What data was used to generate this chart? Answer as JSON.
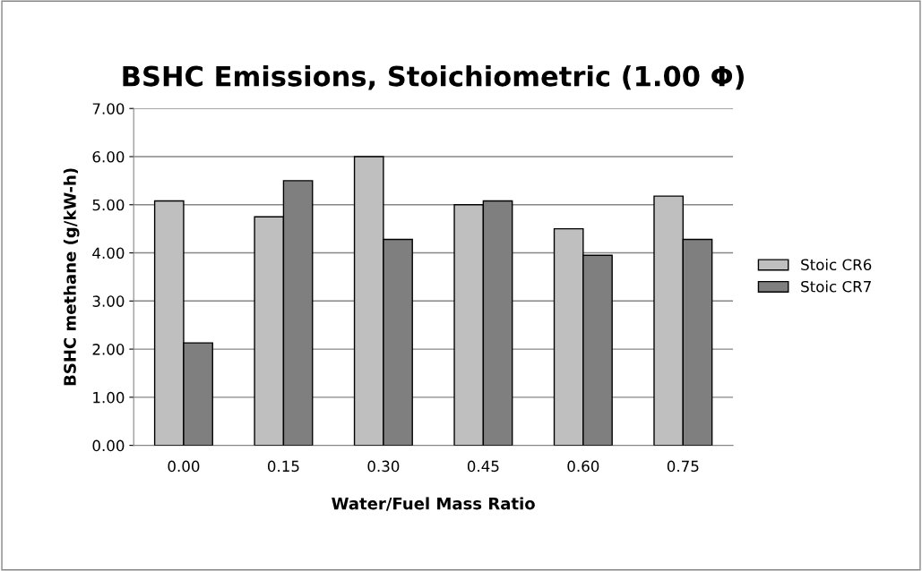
{
  "chart_data": {
    "type": "bar",
    "title": "BSHC Emissions, Stoichiometric (1.00 Φ)",
    "xlabel": "Water/Fuel Mass Ratio",
    "ylabel": "BSHC methane (g/kW-h)",
    "categories": [
      "0.00",
      "0.15",
      "0.30",
      "0.45",
      "0.60",
      "0.75"
    ],
    "series": [
      {
        "name": "Stoic CR6",
        "color": "#bfbfbf",
        "values": [
          5.08,
          4.75,
          6.0,
          5.0,
          4.5,
          5.18
        ]
      },
      {
        "name": "Stoic CR7",
        "color": "#7f7f7f",
        "values": [
          2.13,
          5.5,
          4.28,
          5.08,
          3.95,
          4.28
        ]
      }
    ],
    "ylim": [
      0,
      7
    ],
    "yticks": [
      {
        "value": 0,
        "label": "0.00"
      },
      {
        "value": 1,
        "label": "1.00"
      },
      {
        "value": 2,
        "label": "2.00"
      },
      {
        "value": 3,
        "label": "3.00"
      },
      {
        "value": 4,
        "label": "4.00"
      },
      {
        "value": 5,
        "label": "5.00"
      },
      {
        "value": 6,
        "label": "6.00"
      },
      {
        "value": 7,
        "label": "7.00"
      }
    ],
    "grid": "y",
    "legend": "right"
  }
}
